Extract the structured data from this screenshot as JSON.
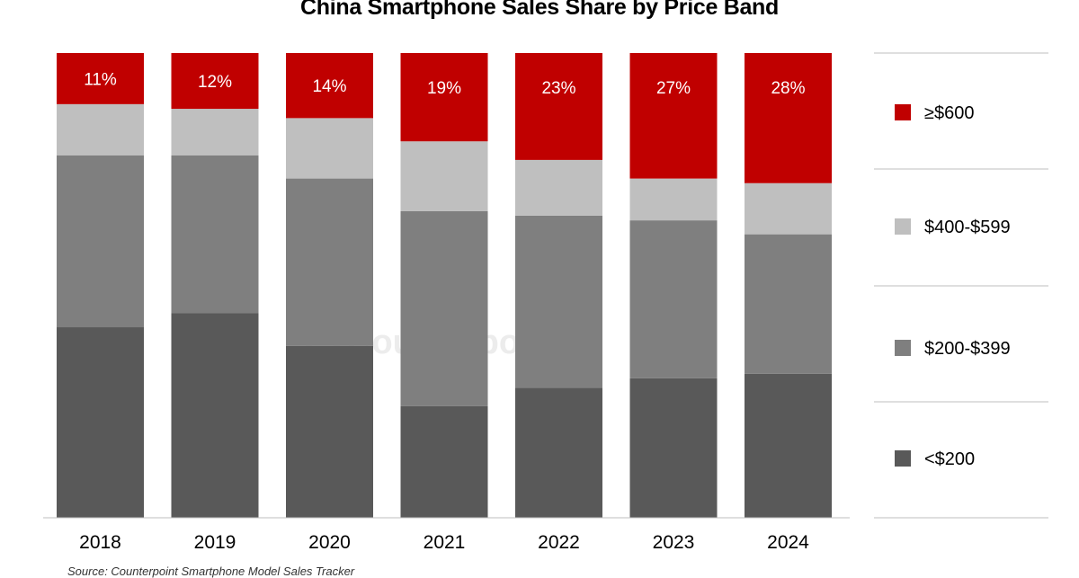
{
  "chart_data": {
    "type": "bar",
    "stacked": true,
    "title": "China Smartphone Sales Share by Price Band",
    "categories": [
      "2018",
      "2019",
      "2020",
      "2021",
      "2022",
      "2023",
      "2024"
    ],
    "series": [
      {
        "name": "<$200",
        "color": "#595959",
        "values": [
          41,
          44,
          37,
          24,
          28,
          30,
          31
        ]
      },
      {
        "name": "$200-$399",
        "color": "#7F7F7F",
        "values": [
          37,
          34,
          36,
          42,
          37,
          34,
          30
        ]
      },
      {
        "name": "$400-$599",
        "color": "#BFBFBF",
        "values": [
          11,
          10,
          13,
          15,
          12,
          9,
          11
        ]
      },
      {
        "name": "≥$600",
        "color": "#C00000",
        "values": [
          11,
          12,
          14,
          19,
          23,
          27,
          28
        ],
        "labels": [
          "11%",
          "12%",
          "14%",
          "19%",
          "23%",
          "27%",
          "28%"
        ]
      }
    ],
    "legend_order": [
      "≥$600",
      "$400-$599",
      "$200-$399",
      "<$200"
    ],
    "legend_placement": "right",
    "ylim": [
      0,
      100
    ],
    "xlabel": "",
    "ylabel": "",
    "grid": false
  },
  "source": "Source: Counterpoint Smartphone Model Sales Tracker",
  "watermark": "Counterpoint"
}
